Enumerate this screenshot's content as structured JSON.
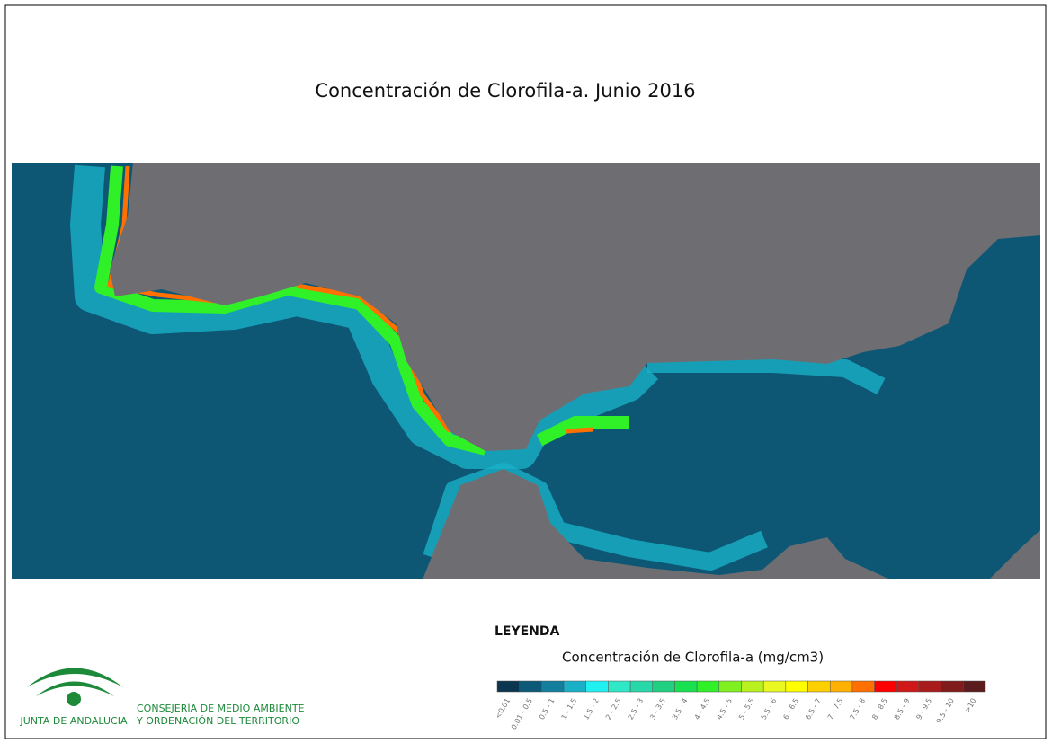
{
  "title": "Concentración de Clorofila-a. Junio 2016",
  "legend": {
    "heading": "LEYENDA",
    "title": "Concentración de Clorofila-a (mg/cm3)",
    "items": [
      {
        "label": "<0.01",
        "color": "#0b3650"
      },
      {
        "label": "0.01 - 0.5",
        "color": "#0d5a78"
      },
      {
        "label": "0.5 - 1",
        "color": "#137f9c"
      },
      {
        "label": "1 - 1.5",
        "color": "#19b0c8"
      },
      {
        "label": "1.5 - 2",
        "color": "#20f0f0"
      },
      {
        "label": "2 - 2.5",
        "color": "#2ee8c8"
      },
      {
        "label": "2.5 - 3",
        "color": "#28d8a8"
      },
      {
        "label": "3 - 3.5",
        "color": "#20d080"
      },
      {
        "label": "3.5 - 4",
        "color": "#18e050"
      },
      {
        "label": "4 - 4.5",
        "color": "#30f028"
      },
      {
        "label": "4.5 - 5",
        "color": "#80f020"
      },
      {
        "label": "5 - 5.5",
        "color": "#b8f020"
      },
      {
        "label": "5.5 - 6",
        "color": "#e8f820"
      },
      {
        "label": "6 - 6.5",
        "color": "#ffff00"
      },
      {
        "label": "6.5 - 7",
        "color": "#ffd000"
      },
      {
        "label": "7 - 7.5",
        "color": "#ffb000"
      },
      {
        "label": "7.5 - 8",
        "color": "#ff7000"
      },
      {
        "label": "8 - 8.5",
        "color": "#ff0000"
      },
      {
        "label": "8.5 - 9",
        "color": "#d01818"
      },
      {
        "label": "9 - 9.5",
        "color": "#a81c1c"
      },
      {
        "label": "9.5 - 10",
        "color": "#801c1c"
      },
      {
        "label": ">10",
        "color": "#5a1c1c"
      }
    ]
  },
  "logo": {
    "name": "JUNTA DE ANDALUCIA",
    "line1": "CONSEJERÍA DE MEDIO AMBIENTE",
    "line2": "Y ORDENACIÓN DEL TERRITORIO"
  }
}
